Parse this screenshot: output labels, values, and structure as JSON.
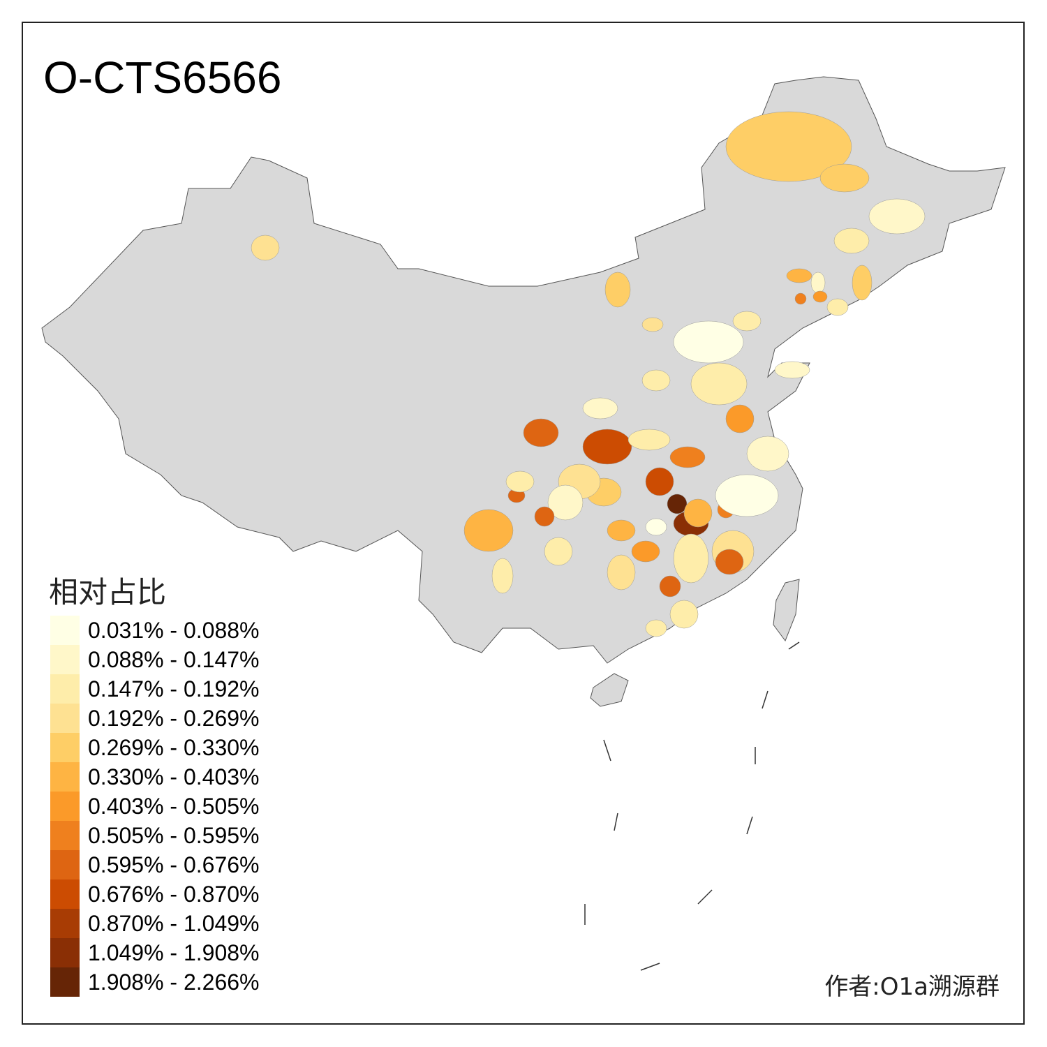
{
  "title": "O-CTS6566",
  "legend": {
    "title": "相对占比",
    "items": [
      {
        "label": "0.031% - 0.088%",
        "color": "#FFFFE5"
      },
      {
        "label": "0.088% - 0.147%",
        "color": "#FFF7C9"
      },
      {
        "label": "0.147% - 0.192%",
        "color": "#FEEDAA"
      },
      {
        "label": "0.192% - 0.269%",
        "color": "#FEE192"
      },
      {
        "label": "0.269% - 0.330%",
        "color": "#FECE66"
      },
      {
        "label": "0.330% - 0.403%",
        "color": "#FEB443"
      },
      {
        "label": "0.403% - 0.505%",
        "color": "#FB9A29"
      },
      {
        "label": "0.505% - 0.595%",
        "color": "#EF801E"
      },
      {
        "label": "0.595% - 0.676%",
        "color": "#DE6512"
      },
      {
        "label": "0.676% - 0.870%",
        "color": "#CC4C02"
      },
      {
        "label": "0.870% - 1.049%",
        "color": "#A83C04"
      },
      {
        "label": "1.049% - 1.908%",
        "color": "#8A2F05"
      },
      {
        "label": "1.908% - 2.266%",
        "color": "#662506"
      }
    ]
  },
  "author": "作者:O1a溯源群",
  "colors": {
    "nodata": "#D9D9D9",
    "border": "#555555"
  }
}
